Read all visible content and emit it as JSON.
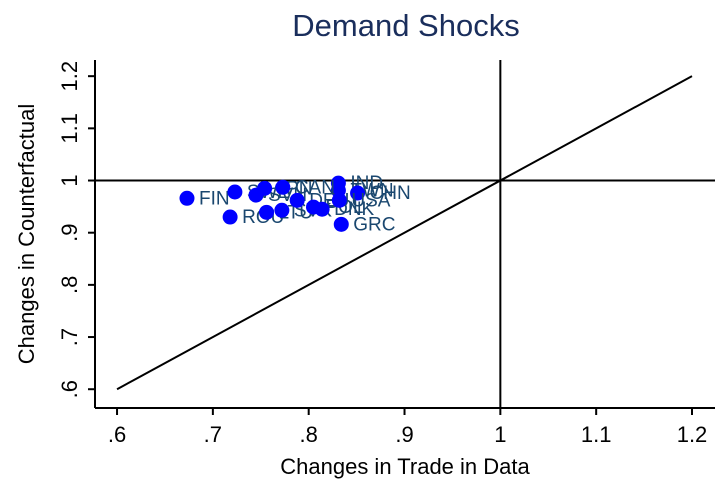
{
  "chart_data": {
    "type": "scatter",
    "title": "Demand Shocks",
    "x_label": "Changes in Trade in Data",
    "y_label": "Changes in Counterfactual",
    "color": "#0000ff",
    "xlim": [
      0.577,
      1.224
    ],
    "ylim": [
      0.564,
      1.231
    ],
    "xticks": [
      {
        "value": 0.6,
        "label": ".6"
      },
      {
        "value": 0.7,
        "label": ".7"
      },
      {
        "value": 0.8,
        "label": ".8"
      },
      {
        "value": 0.9,
        "label": ".9"
      },
      1,
      1.1,
      1.2
    ],
    "yticks": [
      {
        "value": 0.6,
        "label": ".6"
      },
      {
        "value": 0.7,
        "label": ".7"
      },
      {
        "value": 0.8,
        "label": ".8"
      },
      {
        "value": 0.9,
        "label": ".9"
      },
      1,
      1.1,
      1.2
    ],
    "xline": 1,
    "yline": 1,
    "diagonal": [
      0.6,
      1.2
    ],
    "labels": [
      "FIN",
      "ROU",
      "SWE",
      "GRC",
      "IND",
      "TWN",
      "CHN",
      "SVN",
      "JPN",
      "CAN",
      "LTU",
      "SVK",
      "DEU",
      "POL",
      "DNK",
      "USA"
    ],
    "x": [
      0.673,
      0.718,
      0.723,
      0.834,
      0.831,
      0.831,
      0.851,
      0.745,
      0.754,
      0.773,
      0.756,
      0.772,
      0.788,
      0.805,
      0.814,
      0.832
    ],
    "y": [
      0.966,
      0.93,
      0.978,
      0.916,
      0.995,
      0.981,
      0.976,
      0.972,
      0.985,
      0.987,
      0.939,
      0.943,
      0.962,
      0.949,
      0.945,
      0.962
    ]
  }
}
